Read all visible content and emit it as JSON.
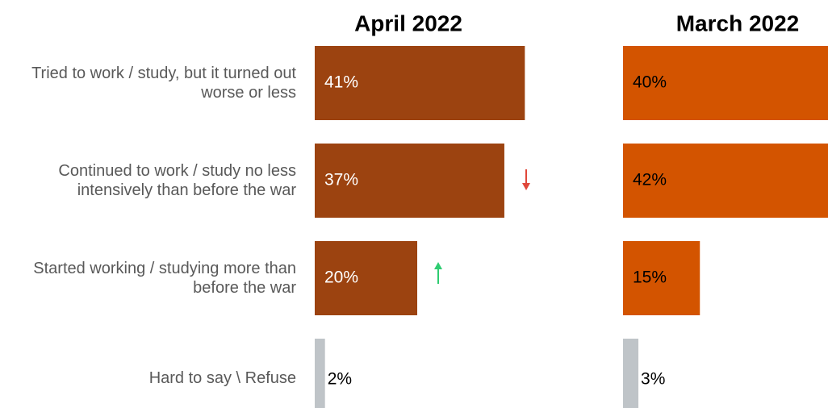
{
  "chart_data": {
    "type": "bar",
    "categories": [
      "Tried to work / study, but it turned out worse or less",
      "Continued to work / study no less intensively than before the war",
      "Started working / studying more than before the war",
      "Hard to say \\ Refuse"
    ],
    "series": [
      {
        "name": "April 2022",
        "colors": [
          "#9c4310",
          "#9c4310",
          "#9c4310",
          "#bfc4c8"
        ],
        "values": [
          41,
          37,
          20,
          2
        ],
        "value_labels": [
          "41%",
          "37%",
          "20%",
          "2%"
        ]
      },
      {
        "name": "March 2022",
        "colors": [
          "#d35400",
          "#d35400",
          "#d35400",
          "#bfc4c8"
        ],
        "values": [
          40,
          42,
          15,
          3
        ],
        "value_labels": [
          "40%",
          "42%",
          "15%",
          "3%"
        ]
      }
    ]
  }
}
